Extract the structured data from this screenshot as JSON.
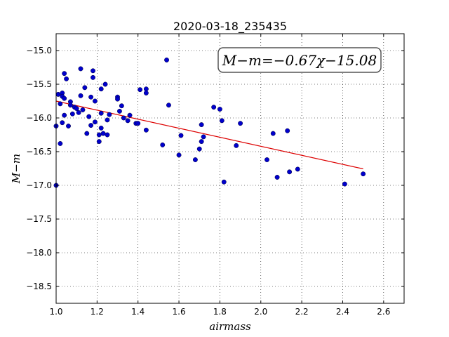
{
  "chart_data": {
    "type": "scatter",
    "title": "2020-03-18_235435",
    "xlabel": "airmass",
    "ylabel": "M−m",
    "xlim": [
      1.0,
      2.7
    ],
    "ylim": [
      -18.75,
      -14.75
    ],
    "y_inverted": true,
    "x_ticks": [
      "1.0",
      "1.2",
      "1.4",
      "1.6",
      "1.8",
      "2.0",
      "2.2",
      "2.4",
      "2.6"
    ],
    "y_ticks": [
      "−15.0",
      "−15.5",
      "−16.0",
      "−16.5",
      "−17.0",
      "−17.5",
      "−18.0",
      "−18.5"
    ],
    "grid": true,
    "annotation": "M−m=−0.67χ−15.08",
    "annotation_position": "top-right",
    "point_color": "#0000cc",
    "fit_color": "#dd0000",
    "fit_line": {
      "slope": -0.67,
      "intercept": -15.08,
      "x_range": [
        1.0,
        2.5
      ]
    },
    "points": [
      [
        1.0,
        -16.12
      ],
      [
        1.0,
        -17.0
      ],
      [
        1.01,
        -15.65
      ],
      [
        1.02,
        -15.79
      ],
      [
        1.02,
        -16.38
      ],
      [
        1.03,
        -15.63
      ],
      [
        1.03,
        -16.07
      ],
      [
        1.03,
        -15.68
      ],
      [
        1.04,
        -15.34
      ],
      [
        1.04,
        -15.96
      ],
      [
        1.04,
        -15.71
      ],
      [
        1.05,
        -15.42
      ],
      [
        1.06,
        -16.12
      ],
      [
        1.07,
        -15.76
      ],
      [
        1.07,
        -15.81
      ],
      [
        1.08,
        -15.94
      ],
      [
        1.09,
        -15.84
      ],
      [
        1.1,
        -15.86
      ],
      [
        1.11,
        -15.92
      ],
      [
        1.12,
        -15.27
      ],
      [
        1.12,
        -15.67
      ],
      [
        1.13,
        -15.88
      ],
      [
        1.14,
        -15.55
      ],
      [
        1.15,
        -16.23
      ],
      [
        1.16,
        -15.98
      ],
      [
        1.17,
        -15.69
      ],
      [
        1.17,
        -16.11
      ],
      [
        1.18,
        -15.3
      ],
      [
        1.18,
        -15.4
      ],
      [
        1.19,
        -15.75
      ],
      [
        1.19,
        -16.06
      ],
      [
        1.21,
        -16.35
      ],
      [
        1.21,
        -16.25
      ],
      [
        1.22,
        -15.93
      ],
      [
        1.22,
        -15.57
      ],
      [
        1.22,
        -16.15
      ],
      [
        1.23,
        -16.23
      ],
      [
        1.24,
        -15.5
      ],
      [
        1.25,
        -16.03
      ],
      [
        1.25,
        -16.25
      ],
      [
        1.26,
        -15.95
      ],
      [
        1.3,
        -15.69
      ],
      [
        1.3,
        -15.72
      ],
      [
        1.31,
        -15.9
      ],
      [
        1.32,
        -15.82
      ],
      [
        1.33,
        -16.0
      ],
      [
        1.35,
        -16.04
      ],
      [
        1.36,
        -15.96
      ],
      [
        1.39,
        -16.08
      ],
      [
        1.4,
        -16.08
      ],
      [
        1.41,
        -15.58
      ],
      [
        1.44,
        -16.18
      ],
      [
        1.44,
        -15.57
      ],
      [
        1.44,
        -15.63
      ],
      [
        1.52,
        -16.4
      ],
      [
        1.54,
        -15.14
      ],
      [
        1.55,
        -15.81
      ],
      [
        1.6,
        -16.55
      ],
      [
        1.61,
        -16.26
      ],
      [
        1.68,
        -16.62
      ],
      [
        1.7,
        -16.46
      ],
      [
        1.71,
        -16.1
      ],
      [
        1.71,
        -16.35
      ],
      [
        1.72,
        -16.28
      ],
      [
        1.77,
        -15.84
      ],
      [
        1.8,
        -15.87
      ],
      [
        1.81,
        -16.04
      ],
      [
        1.82,
        -16.95
      ],
      [
        1.88,
        -16.41
      ],
      [
        1.9,
        -16.08
      ],
      [
        2.03,
        -16.62
      ],
      [
        2.06,
        -16.23
      ],
      [
        2.08,
        -16.88
      ],
      [
        2.13,
        -16.19
      ],
      [
        2.14,
        -16.8
      ],
      [
        2.18,
        -16.76
      ],
      [
        2.41,
        -16.98
      ],
      [
        2.5,
        -16.83
      ]
    ]
  }
}
